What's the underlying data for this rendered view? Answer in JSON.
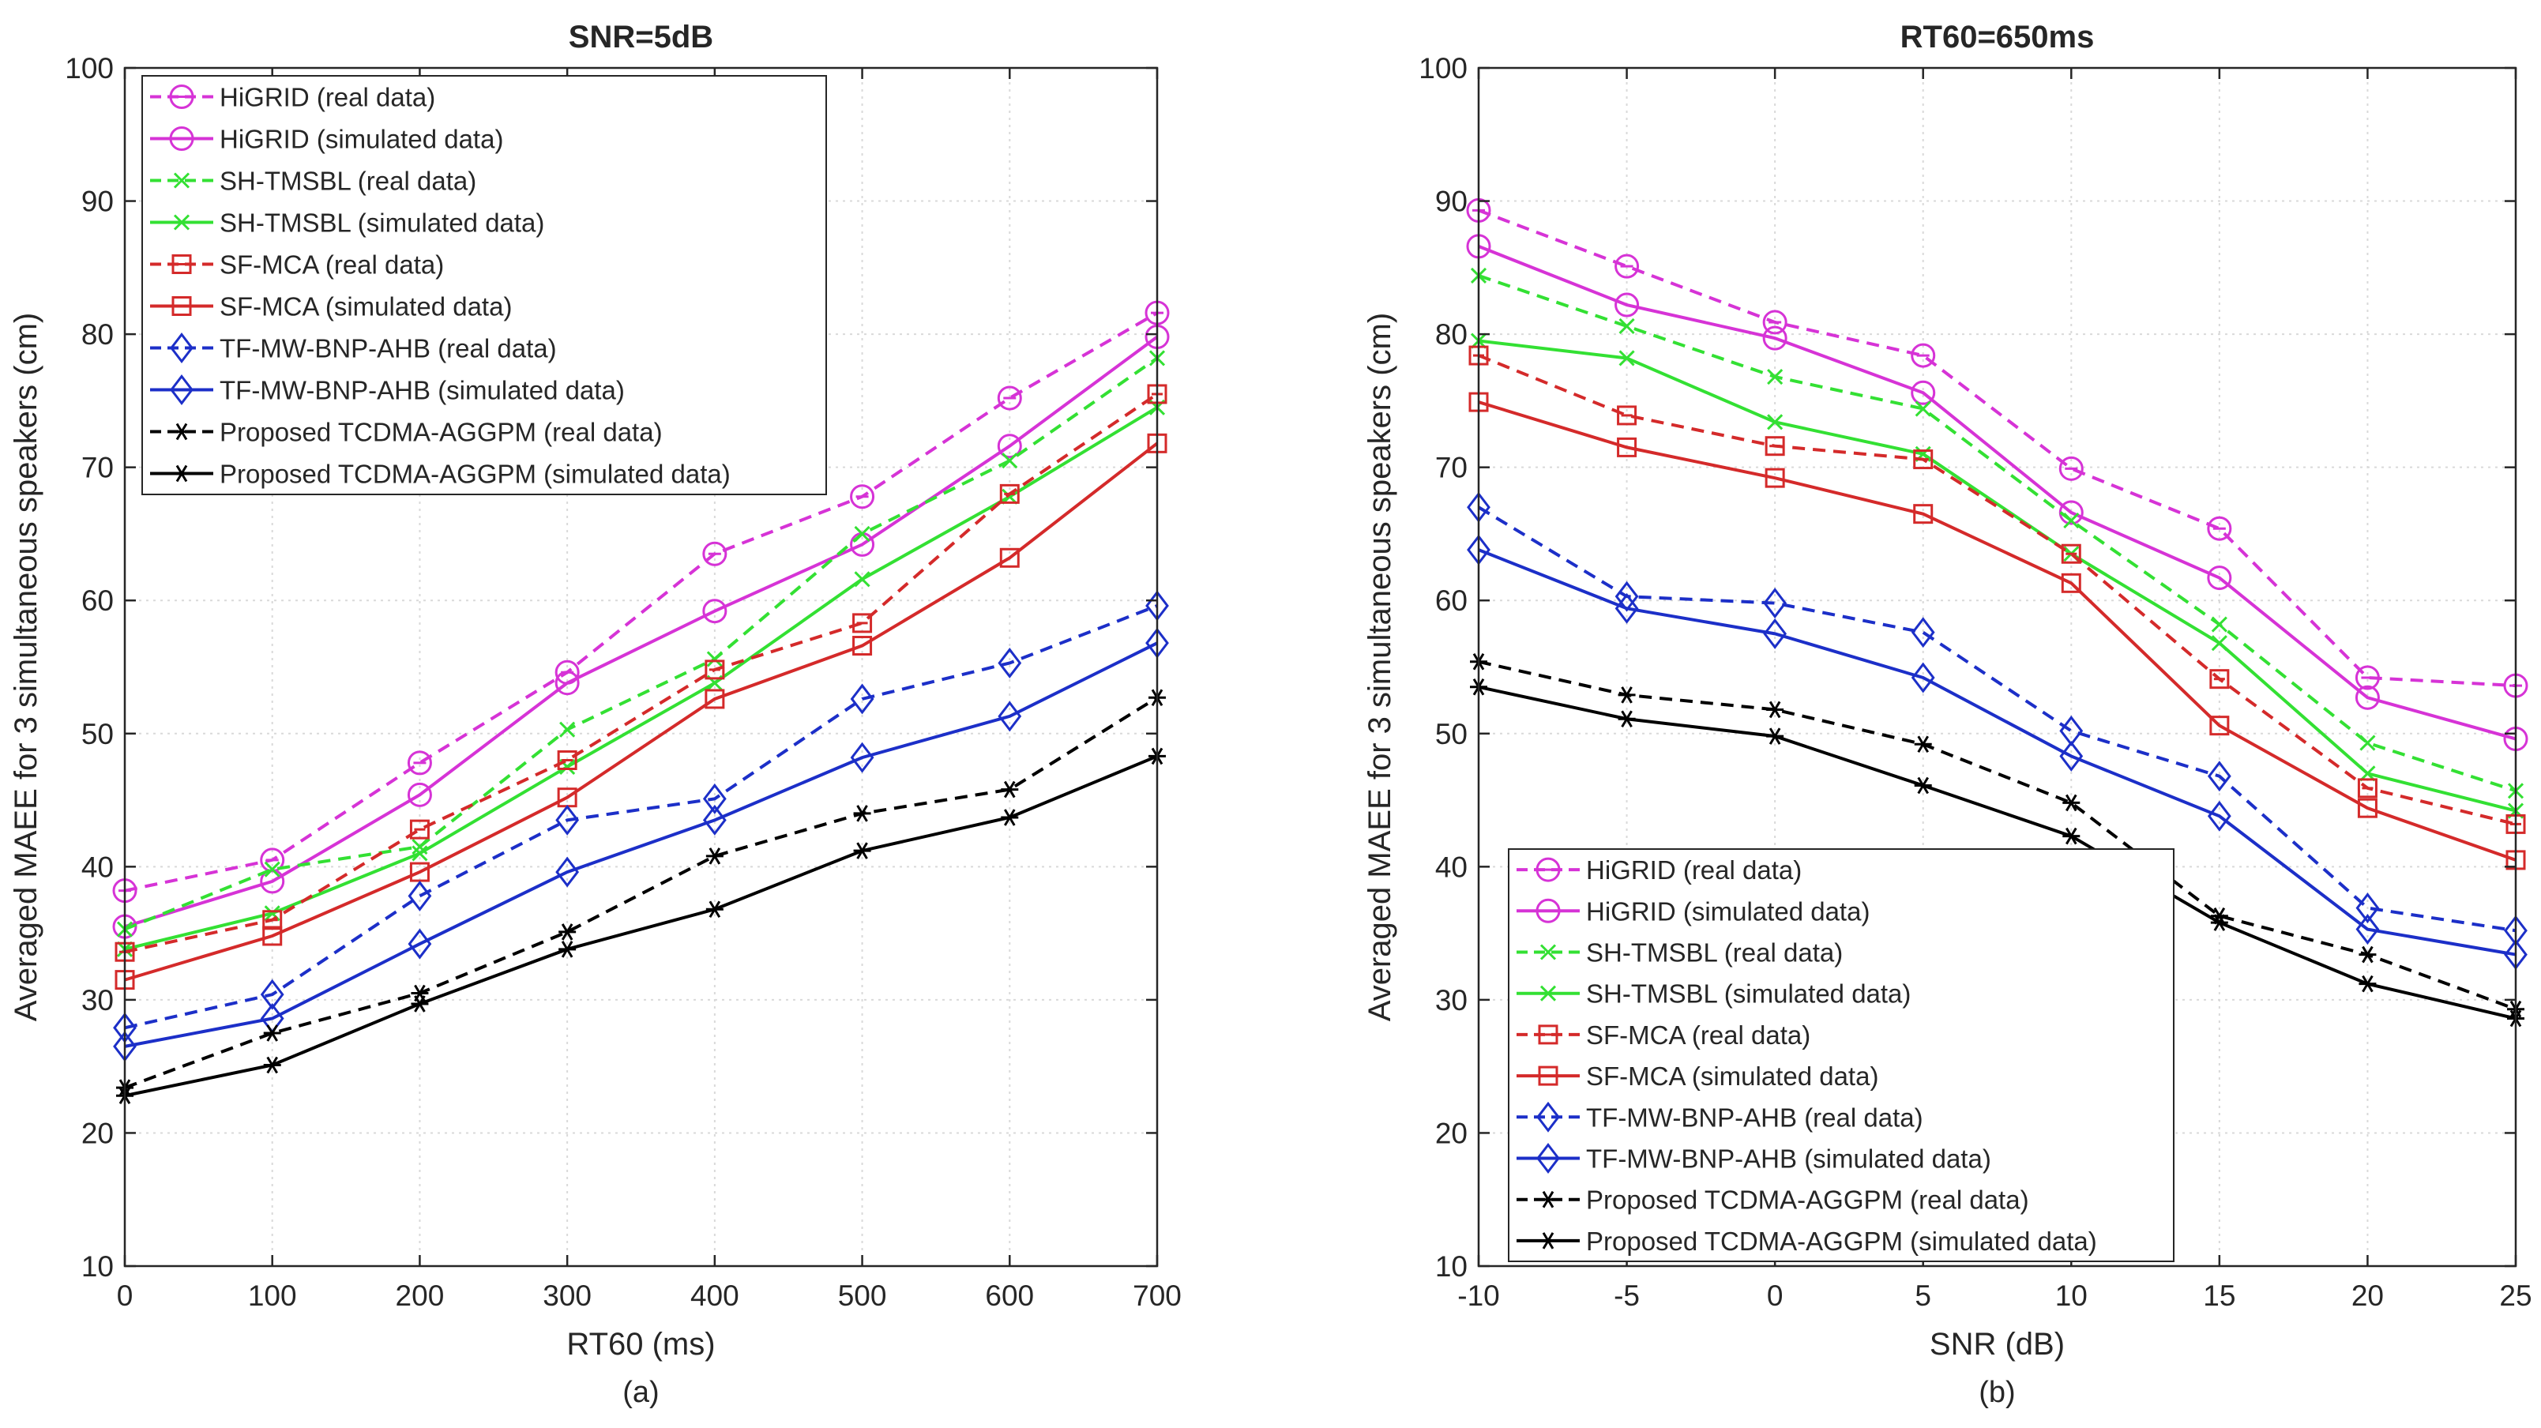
{
  "chart_data": [
    {
      "type": "line",
      "title": "SNR=5dB",
      "xlabel": "RT60 (ms)",
      "ylabel": "Averaged MAEE for 3 simultaneous speakers (cm)",
      "caption": "(a)",
      "xlim": [
        0,
        700
      ],
      "ylim": [
        10,
        100
      ],
      "xticks": [
        0,
        100,
        200,
        300,
        400,
        500,
        600,
        700
      ],
      "yticks": [
        10,
        20,
        30,
        40,
        50,
        60,
        70,
        80,
        90,
        100
      ],
      "grid": true,
      "legend_position": "top-left",
      "x": [
        0,
        100,
        200,
        300,
        400,
        500,
        600,
        700
      ],
      "series": [
        {
          "name": "HiGRID (real data)",
          "color": "#d633d6",
          "dash": true,
          "marker": "circle-minus",
          "values": [
            38.2,
            40.5,
            47.8,
            54.6,
            63.5,
            67.8,
            75.2,
            81.6
          ]
        },
        {
          "name": "HiGRID (simulated data)",
          "color": "#d633d6",
          "dash": false,
          "marker": "circle",
          "values": [
            35.5,
            38.9,
            45.4,
            53.8,
            59.2,
            64.2,
            71.6,
            79.8
          ]
        },
        {
          "name": "SH-TMSBL (real data)",
          "color": "#33e033",
          "dash": true,
          "marker": "x",
          "values": [
            35.3,
            39.8,
            41.5,
            50.3,
            55.6,
            65.0,
            70.5,
            78.2
          ]
        },
        {
          "name": "SH-TMSBL (simulated data)",
          "color": "#33e033",
          "dash": false,
          "marker": "x",
          "values": [
            33.8,
            36.5,
            41.0,
            47.5,
            53.8,
            61.6,
            67.8,
            74.5
          ]
        },
        {
          "name": "SF-MCA (real data)",
          "color": "#d42a2a",
          "dash": true,
          "marker": "square-minus",
          "values": [
            33.6,
            36.0,
            42.8,
            48.0,
            54.8,
            58.3,
            68.0,
            75.5
          ]
        },
        {
          "name": "SF-MCA (simulated data)",
          "color": "#d42a2a",
          "dash": false,
          "marker": "square",
          "values": [
            31.5,
            34.8,
            39.6,
            45.2,
            52.6,
            56.6,
            63.2,
            71.8
          ]
        },
        {
          "name": "TF-MW-BNP-AHB (real data)",
          "color": "#1c2fc8",
          "dash": true,
          "marker": "diamond",
          "values": [
            27.9,
            30.4,
            37.8,
            43.5,
            45.1,
            52.6,
            55.3,
            59.6
          ]
        },
        {
          "name": "TF-MW-BNP-AHB (simulated data)",
          "color": "#1c2fc8",
          "dash": false,
          "marker": "diamond",
          "values": [
            26.5,
            28.6,
            34.2,
            39.6,
            43.5,
            48.2,
            51.3,
            56.8
          ]
        },
        {
          "name": "Proposed TCDMA-AGGPM (real data)",
          "color": "#000000",
          "dash": true,
          "marker": "asterisk",
          "values": [
            23.4,
            27.5,
            30.5,
            35.1,
            40.8,
            44.0,
            45.8,
            52.7
          ]
        },
        {
          "name": "Proposed TCDMA-AGGPM (simulated data)",
          "color": "#000000",
          "dash": false,
          "marker": "asterisk",
          "values": [
            22.8,
            25.1,
            29.7,
            33.8,
            36.8,
            41.2,
            43.7,
            48.3
          ]
        }
      ]
    },
    {
      "type": "line",
      "title": "RT60=650ms",
      "xlabel": "SNR (dB)",
      "ylabel": "Averaged MAEE for 3 simultaneous speakers (cm)",
      "caption": "(b)",
      "xlim": [
        -10,
        25
      ],
      "ylim": [
        10,
        100
      ],
      "xticks": [
        -10,
        -5,
        0,
        5,
        10,
        15,
        20,
        25
      ],
      "yticks": [
        10,
        20,
        30,
        40,
        50,
        60,
        70,
        80,
        90,
        100
      ],
      "grid": true,
      "legend_position": "bottom-left",
      "x": [
        -10,
        -5,
        0,
        5,
        10,
        15,
        20,
        25
      ],
      "series": [
        {
          "name": "HiGRID (real data)",
          "color": "#d633d6",
          "dash": true,
          "marker": "circle-minus",
          "values": [
            89.3,
            85.1,
            80.9,
            78.4,
            69.9,
            65.4,
            54.2,
            53.6
          ]
        },
        {
          "name": "HiGRID (simulated data)",
          "color": "#d633d6",
          "dash": false,
          "marker": "circle",
          "values": [
            86.6,
            82.2,
            79.7,
            75.6,
            66.6,
            61.7,
            52.7,
            49.6
          ]
        },
        {
          "name": "SH-TMSBL (real data)",
          "color": "#33e033",
          "dash": true,
          "marker": "x",
          "values": [
            84.4,
            80.6,
            76.8,
            74.4,
            66.0,
            58.2,
            49.3,
            45.7
          ]
        },
        {
          "name": "SH-TMSBL (simulated data)",
          "color": "#33e033",
          "dash": false,
          "marker": "x",
          "values": [
            79.5,
            78.2,
            73.4,
            71.0,
            63.5,
            56.8,
            47.0,
            44.2
          ]
        },
        {
          "name": "SF-MCA (real data)",
          "color": "#d42a2a",
          "dash": true,
          "marker": "square-minus",
          "values": [
            78.4,
            73.9,
            71.6,
            70.6,
            63.5,
            54.1,
            45.9,
            43.2
          ]
        },
        {
          "name": "SF-MCA (simulated data)",
          "color": "#d42a2a",
          "dash": false,
          "marker": "square",
          "values": [
            74.9,
            71.5,
            69.2,
            66.5,
            61.3,
            50.6,
            44.4,
            40.5
          ]
        },
        {
          "name": "TF-MW-BNP-AHB (real data)",
          "color": "#1c2fc8",
          "dash": true,
          "marker": "diamond",
          "values": [
            67.0,
            60.3,
            59.8,
            57.6,
            50.2,
            46.8,
            36.9,
            35.2
          ]
        },
        {
          "name": "TF-MW-BNP-AHB (simulated data)",
          "color": "#1c2fc8",
          "dash": false,
          "marker": "diamond",
          "values": [
            63.8,
            59.4,
            57.5,
            54.2,
            48.3,
            43.8,
            35.3,
            33.4
          ]
        },
        {
          "name": "Proposed TCDMA-AGGPM (real data)",
          "color": "#000000",
          "dash": true,
          "marker": "asterisk",
          "values": [
            55.4,
            52.9,
            51.8,
            49.2,
            44.8,
            36.3,
            33.4,
            29.3
          ]
        },
        {
          "name": "Proposed TCDMA-AGGPM (simulated data)",
          "color": "#000000",
          "dash": false,
          "marker": "asterisk",
          "values": [
            53.5,
            51.1,
            49.8,
            46.1,
            42.3,
            35.8,
            31.2,
            28.6
          ]
        }
      ]
    }
  ]
}
